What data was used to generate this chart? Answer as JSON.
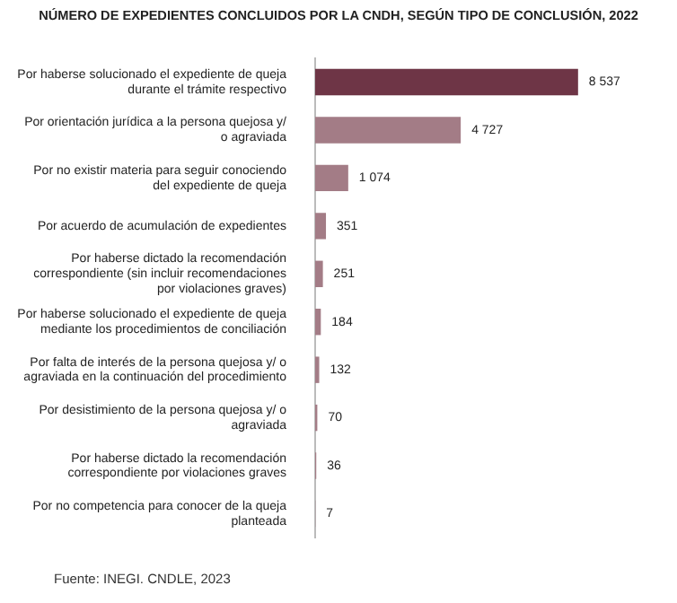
{
  "chart_data": {
    "type": "bar",
    "orientation": "horizontal",
    "title": "NÚMERO DE EXPEDIENTES CONCLUIDOS POR LA CNDH, SEGÚN TIPO DE CONCLUSIÓN, 2022",
    "categories": [
      "Por haberse solucionado el expediente de queja durante el trámite respectivo",
      "Por orientación jurídica a la persona quejosa y/ o agraviada",
      "Por no existir materia para seguir conociendo del expediente de queja",
      "Por acuerdo de acumulación de expedientes",
      "Por haberse dictado la recomendación correspondiente (sin incluir recomendaciones por violaciones graves)",
      "Por haberse solucionado el expediente de queja mediante los procedimientos de conciliación",
      "Por falta de interés de la persona quejosa y/ o agraviada en la continuación del procedimiento",
      "Por desistimiento de la persona quejosa y/ o agraviada",
      "Por haberse dictado la recomendación correspondiente por violaciones graves",
      "Por no competencia para conocer de la queja planteada"
    ],
    "values": [
      8537,
      4727,
      1074,
      351,
      251,
      184,
      132,
      70,
      36,
      7
    ],
    "value_labels": [
      "8 537",
      "4 727",
      "1 074",
      "351",
      "251",
      "184",
      "132",
      "70",
      "36",
      "7"
    ],
    "colors": [
      "#6e3546",
      "#a37c86",
      "#a37c86",
      "#a37c86",
      "#a37c86",
      "#a37c86",
      "#a37c86",
      "#a37c86",
      "#a37c86",
      "#a37c86"
    ],
    "legend": false,
    "annotations": [
      "Fuente: INEGI. CNDLE, 2023"
    ]
  }
}
